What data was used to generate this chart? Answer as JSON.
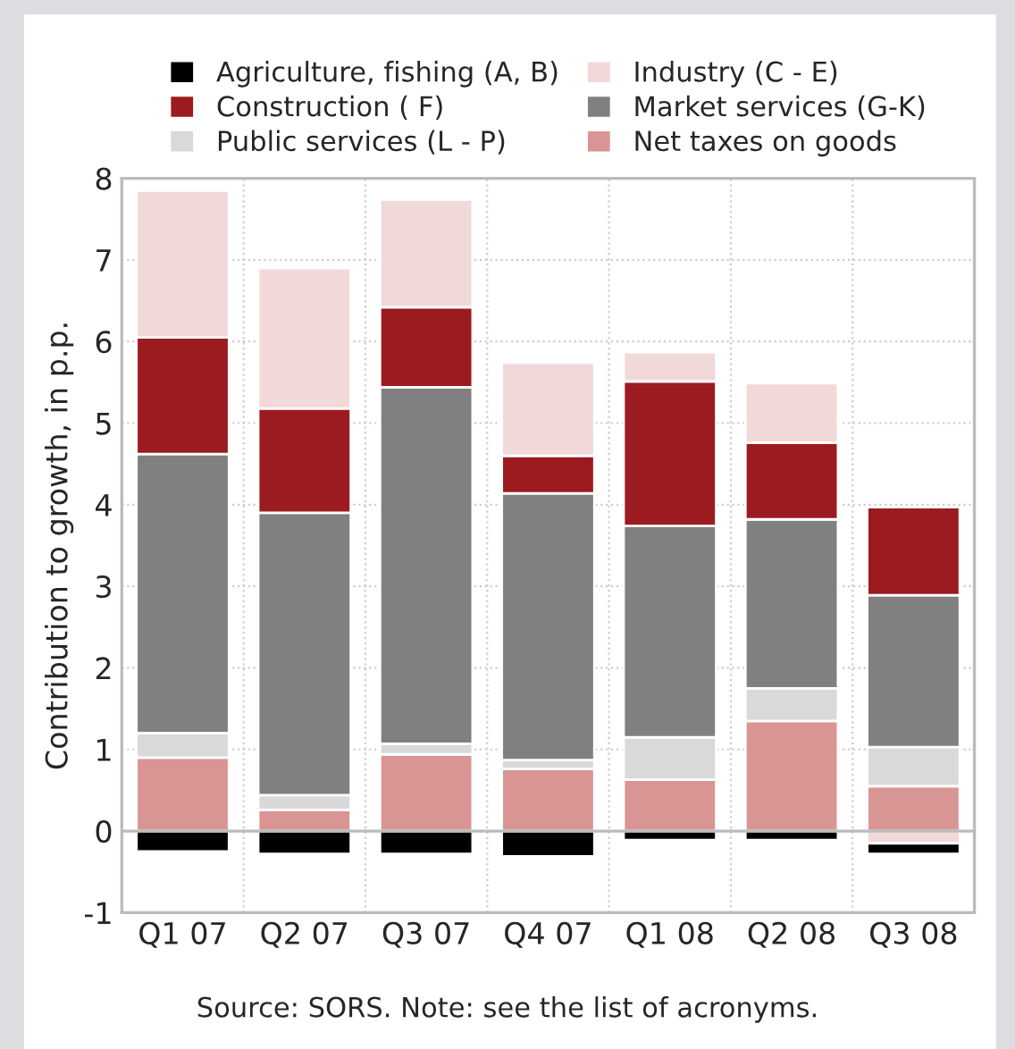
{
  "chart_data": {
    "type": "bar",
    "stacked": true,
    "ylabel": "Contribution to growth, in p.p.",
    "categories": [
      "Q1 07",
      "Q2 07",
      "Q3 07",
      "Q4 07",
      "Q1 08",
      "Q2 08",
      "Q3 08"
    ],
    "series": [
      {
        "name": "Net taxes on goods",
        "color": "#d99594",
        "values": [
          0.9,
          0.26,
          0.94,
          0.76,
          0.63,
          1.35,
          0.55
        ]
      },
      {
        "name": "Public services (L - P)",
        "color": "#d9d9d9",
        "values": [
          0.3,
          0.18,
          0.13,
          0.11,
          0.52,
          0.4,
          0.48
        ]
      },
      {
        "name": "Market services (G-K)",
        "color": "#808080",
        "values": [
          3.42,
          3.46,
          4.37,
          3.27,
          2.59,
          2.07,
          1.86
        ]
      },
      {
        "name": "Construction ( F)",
        "color": "#9b1b20",
        "values": [
          1.43,
          1.28,
          0.98,
          0.46,
          1.77,
          0.94,
          1.08
        ]
      },
      {
        "name": "Industry (C - E)",
        "color": "#f2d9d9",
        "values": [
          1.8,
          1.72,
          1.32,
          1.14,
          0.36,
          0.73,
          -0.15
        ]
      },
      {
        "name": "Agriculture, fishing (A, B)",
        "color": "#000000",
        "values": [
          -0.25,
          -0.28,
          -0.28,
          -0.31,
          -0.11,
          -0.11,
          -0.13
        ]
      }
    ],
    "ylim": [
      -1,
      8
    ],
    "yticks": [
      -1,
      0,
      1,
      2,
      3,
      4,
      5,
      6,
      7,
      8
    ],
    "grid": true,
    "legend": "top",
    "annotations": [
      "Source: SORS. Note: see the list of acronyms."
    ]
  }
}
